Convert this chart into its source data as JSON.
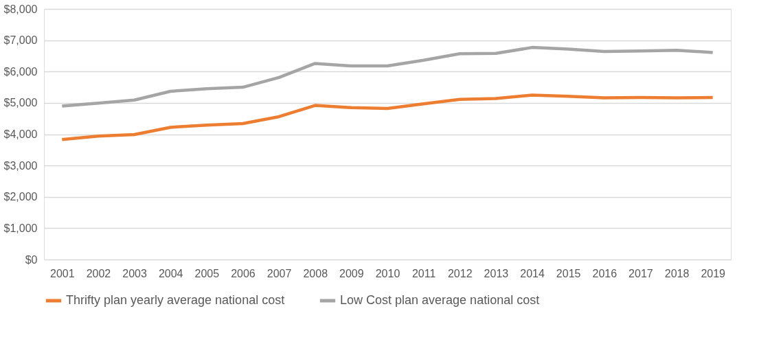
{
  "chart_data": {
    "type": "line",
    "categories": [
      "2001",
      "2002",
      "2003",
      "2004",
      "2005",
      "2006",
      "2007",
      "2008",
      "2009",
      "2010",
      "2011",
      "2012",
      "2013",
      "2014",
      "2015",
      "2016",
      "2017",
      "2018",
      "2019"
    ],
    "series": [
      {
        "name": "Thrifty plan yearly average national cost",
        "color": "#ed7d31",
        "values": [
          3830,
          3940,
          3990,
          4220,
          4290,
          4340,
          4560,
          4920,
          4850,
          4820,
          4970,
          5110,
          5140,
          5250,
          5210,
          5160,
          5170,
          5160,
          5170
        ]
      },
      {
        "name": "Low Cost plan average national cost",
        "color": "#a5a5a5",
        "values": [
          4900,
          4990,
          5090,
          5370,
          5450,
          5500,
          5810,
          6260,
          6180,
          6180,
          6360,
          6570,
          6580,
          6770,
          6720,
          6640,
          6660,
          6680,
          6610
        ]
      }
    ],
    "ylim": [
      0,
      8000
    ],
    "yticks": [
      {
        "value": 0,
        "label": "$0"
      },
      {
        "value": 1000,
        "label": "$1,000"
      },
      {
        "value": 2000,
        "label": "$2,000"
      },
      {
        "value": 3000,
        "label": "$3,000"
      },
      {
        "value": 4000,
        "label": "$4,000"
      },
      {
        "value": 5000,
        "label": "$5,000"
      },
      {
        "value": 6000,
        "label": "$6,000"
      },
      {
        "value": 7000,
        "label": "$7,000"
      },
      {
        "value": 8000,
        "label": "$8,000"
      }
    ],
    "grid": "y",
    "legend": "bottom",
    "marker": "none",
    "line_style": "solid"
  }
}
